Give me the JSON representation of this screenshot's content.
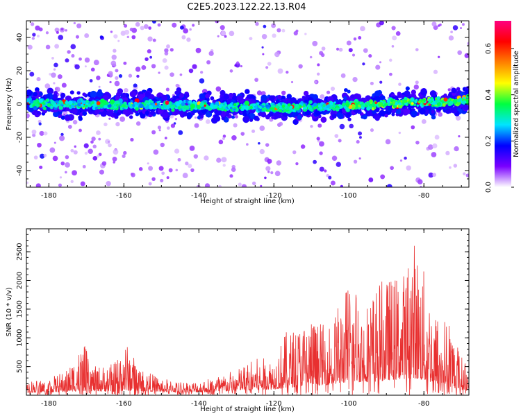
{
  "title": "C2E5.2023.122.22.13.R04",
  "chart_data": [
    {
      "type": "heatmap",
      "xlabel": "Height of straight line (km)",
      "ylabel": "Frequency (Hz)",
      "xlim": [
        -186,
        -68
      ],
      "ylim": [
        -50,
        50
      ],
      "x_ticks": [
        -180,
        -160,
        -140,
        -120,
        -100,
        -80
      ],
      "y_ticks": [
        -40,
        -20,
        0,
        20,
        40
      ],
      "colorbar": {
        "label": "Normalized spectral amplitude",
        "range": [
          0.0,
          0.72
        ],
        "ticks": [
          0.0,
          0.2,
          0.4,
          0.6
        ],
        "colormap": [
          "#ffffff",
          "#7a00ff",
          "#0000ff",
          "#00e5ff",
          "#00ff40",
          "#ffff00",
          "#ff8000",
          "#ff0000",
          "#ff0080"
        ]
      },
      "ridge": {
        "description_values": "Strong spectral ridge near 0 Hz across all heights; rises to ~+2 Hz near -75 km",
        "center_hz": [
          [
            -185,
            0
          ],
          [
            -140,
            -1
          ],
          [
            -120,
            -2
          ],
          [
            -100,
            -1
          ],
          [
            -90,
            0
          ],
          [
            -80,
            1
          ],
          [
            -70,
            2
          ]
        ],
        "half_width_hz": 4
      }
    },
    {
      "type": "line",
      "xlabel": "Height of straight line (km)",
      "ylabel": "SNR (10 * v/v)",
      "xlim": [
        -186,
        -68
      ],
      "ylim": [
        0,
        2900
      ],
      "x_ticks": [
        -180,
        -160,
        -140,
        -120,
        -100,
        -80
      ],
      "y_ticks": [
        500,
        1000,
        1500,
        2000,
        2500
      ],
      "color": "#e83030",
      "envelope": {
        "x": [
          -186,
          -180,
          -175,
          -171,
          -168,
          -163,
          -160,
          -155,
          -150,
          -145,
          -140,
          -135,
          -130,
          -125,
          -120,
          -117,
          -114,
          -110,
          -106,
          -102,
          -99,
          -96,
          -92,
          -88,
          -85,
          -83,
          -80,
          -77,
          -73,
          -70,
          -68
        ],
        "peak": [
          250,
          300,
          450,
          950,
          500,
          550,
          970,
          450,
          300,
          250,
          250,
          350,
          450,
          650,
          650,
          1100,
          1200,
          1400,
          1200,
          1700,
          2200,
          1600,
          2000,
          2100,
          2200,
          2850,
          2200,
          1500,
          1300,
          700,
          500
        ],
        "base": [
          150,
          170,
          200,
          250,
          230,
          220,
          260,
          240,
          200,
          170,
          160,
          200,
          260,
          300,
          350,
          400,
          500,
          550,
          600,
          700,
          800,
          750,
          800,
          900,
          950,
          1000,
          850,
          700,
          500,
          300,
          250
        ]
      }
    }
  ]
}
